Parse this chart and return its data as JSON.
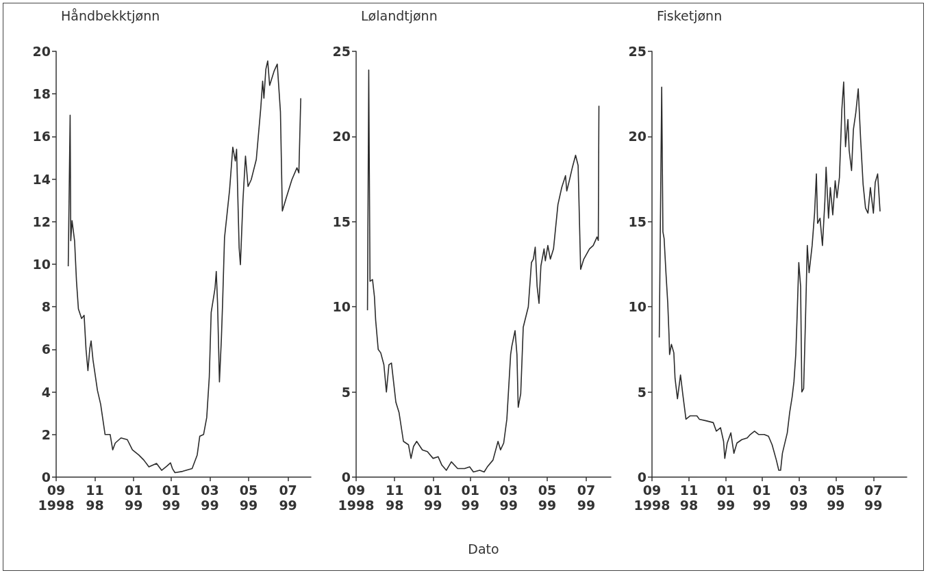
{
  "chart_data": [
    {
      "type": "line",
      "title": "Håndbekktjønn",
      "color": "#2b2b2b",
      "marker": "none",
      "grid": false,
      "xlim": [
        "1998-09-01",
        "1999-10-07"
      ],
      "xticks": [
        {
          "value": "1998-09-01",
          "label": "09\n1998"
        },
        {
          "value": "1998-11-01",
          "label": "11\n98"
        },
        {
          "value": "1999-01-01",
          "label": "01\n99"
        },
        {
          "value": "1999-03-01",
          "label": "01\n99"
        },
        {
          "value": "1999-05-01",
          "label": "03\n99"
        },
        {
          "value": "1999-07-01",
          "label": "05\n99"
        },
        {
          "value": "1999-09-01",
          "label": "07\n99"
        }
      ],
      "ylim": [
        0,
        20
      ],
      "yticks": [
        0,
        2,
        4,
        6,
        8,
        10,
        12,
        14,
        16,
        18,
        20
      ],
      "x": [
        "1998-09-20",
        "1998-09-23",
        "1998-09-24",
        "1998-09-26",
        "1998-09-30",
        "1998-10-03",
        "1998-10-06",
        "1998-10-11",
        "1998-10-15",
        "1998-10-18",
        "1998-10-21",
        "1998-10-24",
        "1998-10-26",
        "1998-10-29",
        "1998-11-05",
        "1998-11-10",
        "1998-11-17",
        "1998-11-25",
        "1998-11-29",
        "1998-12-03",
        "1998-12-12",
        "1998-12-22",
        "1998-12-30",
        "1999-01-09",
        "1999-01-17",
        "1999-01-25",
        "1999-02-06",
        "1999-02-14",
        "1999-02-22",
        "1999-02-28",
        "1999-03-03",
        "1999-03-07",
        "1999-03-19",
        "1999-04-03",
        "1999-04-11",
        "1999-04-15",
        "1999-04-21",
        "1999-04-26",
        "1999-04-30",
        "1999-05-03",
        "1999-05-09",
        "1999-05-11",
        "1999-05-13",
        "1999-05-16",
        "1999-05-19",
        "1999-05-21",
        "1999-05-24",
        "1999-05-28",
        "1999-06-01",
        "1999-06-06",
        "1999-06-10",
        "1999-06-12",
        "1999-06-16",
        "1999-06-18",
        "1999-06-22",
        "1999-06-26",
        "1999-06-30",
        "1999-07-05",
        "1999-07-13",
        "1999-07-20",
        "1999-07-23",
        "1999-07-25",
        "1999-07-28",
        "1999-07-31",
        "1999-08-03",
        "1999-08-10",
        "1999-08-15",
        "1999-08-20",
        "1999-08-23",
        "1999-08-29",
        "1999-09-07",
        "1999-09-15",
        "1999-09-18",
        "1999-09-21"
      ],
      "values": [
        9.9,
        17.0,
        11.1,
        12.05,
        11.1,
        9.2,
        7.9,
        7.45,
        7.6,
        6.0,
        5.0,
        6.05,
        6.4,
        5.5,
        4.07,
        3.43,
        2.0,
        2.0,
        1.28,
        1.6,
        1.84,
        1.76,
        1.28,
        1.04,
        0.8,
        0.48,
        0.64,
        0.32,
        0.51,
        0.67,
        0.4,
        0.21,
        0.27,
        0.4,
        1.04,
        1.92,
        2.0,
        2.8,
        4.7,
        7.74,
        8.86,
        9.66,
        8.2,
        4.47,
        6.46,
        8.2,
        11.25,
        12.37,
        13.5,
        15.5,
        14.85,
        15.4,
        10.77,
        9.98,
        13.0,
        15.08,
        13.65,
        13.97,
        14.92,
        17.32,
        18.6,
        17.8,
        19.15,
        19.55,
        18.4,
        19.07,
        19.4,
        17.16,
        12.5,
        13.1,
        13.97,
        14.53,
        14.29,
        17.8
      ]
    },
    {
      "type": "line",
      "title": "Lølandtjønn",
      "xlabel": "Dato",
      "color": "#2b2b2b",
      "marker": "none",
      "grid": false,
      "xlim": [
        "1998-09-01",
        "1999-10-10"
      ],
      "xticks": [
        {
          "value": "1998-09-01",
          "label": "09\n1998"
        },
        {
          "value": "1998-11-01",
          "label": "11\n98"
        },
        {
          "value": "1999-01-01",
          "label": "01\n99"
        },
        {
          "value": "1999-03-01",
          "label": "01\n99"
        },
        {
          "value": "1999-05-01",
          "label": "03\n99"
        },
        {
          "value": "1999-07-01",
          "label": "05\n99"
        },
        {
          "value": "1999-09-01",
          "label": "07\n99"
        }
      ],
      "ylim": [
        0,
        25
      ],
      "yticks": [
        0,
        5,
        10,
        15,
        20,
        25
      ],
      "x": [
        "1998-09-19",
        "1998-09-21",
        "1998-09-23",
        "1998-09-27",
        "1998-09-30",
        "1998-10-02",
        "1998-10-06",
        "1998-10-10",
        "1998-10-15",
        "1998-10-19",
        "1998-10-23",
        "1998-10-27",
        "1998-11-03",
        "1998-11-08",
        "1998-11-15",
        "1998-11-23",
        "1998-11-27",
        "1998-12-01",
        "1998-12-06",
        "1998-12-15",
        "1998-12-23",
        "1999-01-01",
        "1999-01-09",
        "1999-01-15",
        "1999-01-22",
        "1999-01-30",
        "1999-02-09",
        "1999-02-20",
        "1999-02-28",
        "1999-03-06",
        "1999-03-16",
        "1999-03-23",
        "1999-03-28",
        "1999-04-06",
        "1999-04-14",
        "1999-04-18",
        "1999-04-23",
        "1999-04-28",
        "1999-05-04",
        "1999-05-06",
        "1999-05-11",
        "1999-05-14",
        "1999-05-16",
        "1999-05-20",
        "1999-05-24",
        "1999-06-01",
        "1999-06-06",
        "1999-06-09",
        "1999-06-12",
        "1999-06-15",
        "1999-06-18",
        "1999-06-21",
        "1999-06-26",
        "1999-06-28",
        "1999-07-02",
        "1999-07-06",
        "1999-07-11",
        "1999-07-18",
        "1999-07-24",
        "1999-07-30",
        "1999-08-01",
        "1999-08-05",
        "1999-08-10",
        "1999-08-15",
        "1999-08-19",
        "1999-08-23",
        "1999-08-28",
        "1999-09-06",
        "1999-09-12",
        "1999-09-18",
        "1999-09-20",
        "1999-09-21"
      ],
      "values": [
        9.8,
        23.9,
        11.5,
        11.6,
        10.6,
        9.2,
        7.5,
        7.3,
        6.6,
        5.0,
        6.6,
        6.7,
        4.4,
        3.8,
        2.1,
        1.9,
        1.1,
        1.8,
        2.1,
        1.6,
        1.5,
        1.1,
        1.2,
        0.7,
        0.4,
        0.9,
        0.5,
        0.5,
        0.6,
        0.3,
        0.4,
        0.3,
        0.6,
        1.0,
        2.1,
        1.6,
        2.0,
        3.4,
        7.2,
        7.7,
        8.6,
        7.2,
        4.1,
        4.9,
        8.8,
        10.0,
        12.6,
        12.8,
        13.5,
        11.2,
        10.2,
        12.4,
        13.4,
        12.7,
        13.6,
        12.8,
        13.4,
        16.0,
        17.0,
        17.7,
        16.8,
        17.4,
        18.2,
        18.9,
        18.3,
        12.2,
        12.8,
        13.4,
        13.6,
        14.1,
        13.9,
        21.8
      ]
    },
    {
      "type": "line",
      "title": "Fisketjønn",
      "color": "#2b2b2b",
      "marker": "none",
      "grid": false,
      "xlim": [
        "1998-09-01",
        "1999-10-26"
      ],
      "xticks": [
        {
          "value": "1998-09-01",
          "label": "09\n1998"
        },
        {
          "value": "1998-11-01",
          "label": "11\n98"
        },
        {
          "value": "1999-01-01",
          "label": "01\n99"
        },
        {
          "value": "1999-03-01",
          "label": "01\n99"
        },
        {
          "value": "1999-05-01",
          "label": "03\n99"
        },
        {
          "value": "1999-07-01",
          "label": "05\n99"
        },
        {
          "value": "1999-09-01",
          "label": "07\n99"
        }
      ],
      "ylim": [
        0,
        25
      ],
      "yticks": [
        0,
        5,
        10,
        15,
        20,
        25
      ],
      "x": [
        "1998-09-13",
        "1998-09-17",
        "1998-09-19",
        "1998-09-21",
        "1998-09-24",
        "1998-09-27",
        "1998-09-29",
        "1998-09-30",
        "1998-10-03",
        "1998-10-07",
        "1998-10-09",
        "1998-10-13",
        "1998-10-18",
        "1998-10-22",
        "1998-10-27",
        "1998-11-03",
        "1998-11-14",
        "1998-11-18",
        "1998-11-30",
        "1998-12-11",
        "1998-12-16",
        "1998-12-23",
        "1998-12-28",
        "1998-12-30",
        "1999-01-03",
        "1999-01-09",
        "1999-01-14",
        "1999-01-19",
        "1999-01-27",
        "1999-02-05",
        "1999-02-10",
        "1999-02-17",
        "1999-02-24",
        "1999-03-05",
        "1999-03-12",
        "1999-03-18",
        "1999-03-25",
        "1999-03-29",
        "1999-04-01",
        "1999-04-04",
        "1999-04-12",
        "1999-04-16",
        "1999-04-20",
        "1999-04-23",
        "1999-04-26",
        "1999-04-28",
        "1999-05-01",
        "1999-05-04",
        "1999-05-06",
        "1999-05-09",
        "1999-05-12",
        "1999-05-15",
        "1999-05-18",
        "1999-05-23",
        "1999-05-27",
        "1999-05-30",
        "1999-06-01",
        "1999-06-05",
        "1999-06-09",
        "1999-06-13",
        "1999-06-15",
        "1999-06-19",
        "1999-06-22",
        "1999-06-26",
        "1999-06-30",
        "1999-07-03",
        "1999-07-07",
        "1999-07-11",
        "1999-07-14",
        "1999-07-17",
        "1999-07-21",
        "1999-07-23",
        "1999-07-27",
        "1999-07-30",
        "1999-08-03",
        "1999-08-07",
        "1999-08-11",
        "1999-08-15",
        "1999-08-19",
        "1999-08-23",
        "1999-08-27",
        "1999-09-01",
        "1999-09-04",
        "1999-09-08",
        "1999-09-12"
      ],
      "values": [
        8.2,
        22.9,
        14.4,
        14.0,
        12.0,
        10.2,
        8.4,
        7.2,
        7.8,
        7.3,
        5.8,
        4.6,
        6.0,
        4.8,
        3.4,
        3.6,
        3.6,
        3.4,
        3.3,
        3.2,
        2.7,
        2.9,
        2.1,
        1.1,
        2.0,
        2.6,
        1.4,
        2.0,
        2.2,
        2.3,
        2.5,
        2.7,
        2.5,
        2.5,
        2.4,
        1.9,
        1.0,
        0.4,
        0.4,
        1.4,
        2.6,
        3.8,
        4.7,
        5.6,
        7.2,
        9.2,
        12.6,
        11.2,
        5.0,
        5.2,
        9.2,
        13.6,
        12.0,
        13.6,
        15.5,
        17.8,
        14.9,
        15.2,
        13.6,
        16.2,
        18.2,
        15.2,
        17.0,
        15.4,
        17.4,
        16.4,
        17.6,
        21.6,
        23.2,
        19.4,
        21.0,
        19.2,
        18.0,
        20.4,
        21.4,
        22.8,
        19.8,
        17.2,
        15.8,
        15.5,
        17.0,
        15.5,
        17.3,
        17.8,
        15.6
      ]
    }
  ]
}
